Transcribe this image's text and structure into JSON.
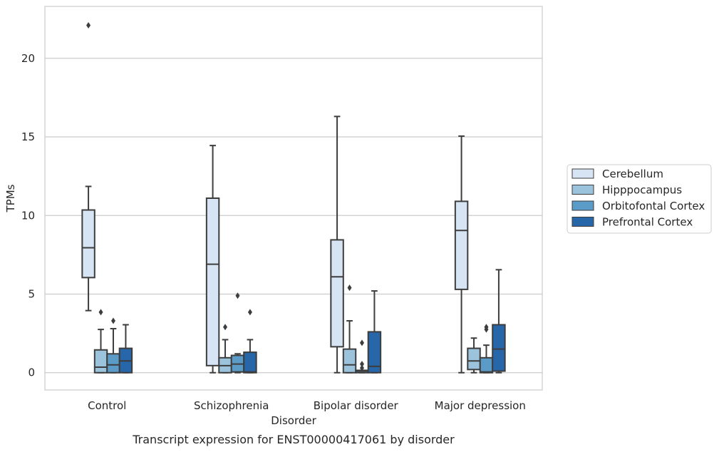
{
  "caption": "Transcript expression for ENST00000417061 by disorder",
  "chart_data": {
    "type": "box",
    "title": "",
    "xlabel": "Disorder",
    "ylabel": "TPMs",
    "ylim": [
      -1.1,
      23.3
    ],
    "yticks": [
      0,
      5,
      10,
      15,
      20
    ],
    "grid": "horizontal",
    "legend_position": "right",
    "categories": [
      "Control",
      "Schizophrenia",
      "Bipolar disorder",
      "Major depression"
    ],
    "series": [
      {
        "name": "Cerebellum",
        "color": "#d6e4f3",
        "boxes": [
          {
            "whisker_low": 3.95,
            "q1": 6.05,
            "median": 7.95,
            "q3": 10.35,
            "whisker_high": 11.85,
            "outliers": [
              22.1
            ]
          },
          {
            "whisker_low": 0.0,
            "q1": 0.45,
            "median": 6.9,
            "q3": 11.1,
            "whisker_high": 14.45,
            "outliers": []
          },
          {
            "whisker_low": 0.0,
            "q1": 1.65,
            "median": 6.1,
            "q3": 8.45,
            "whisker_high": 16.3,
            "outliers": []
          },
          {
            "whisker_low": 0.0,
            "q1": 5.3,
            "median": 9.05,
            "q3": 10.9,
            "whisker_high": 15.05,
            "outliers": []
          }
        ]
      },
      {
        "name": "Hipppocampus",
        "color": "#9cc3dc",
        "boxes": [
          {
            "whisker_low": 0.0,
            "q1": 0.0,
            "median": 0.35,
            "q3": 1.45,
            "whisker_high": 2.75,
            "outliers": [
              3.85
            ]
          },
          {
            "whisker_low": 0.0,
            "q1": 0.0,
            "median": 0.45,
            "q3": 0.95,
            "whisker_high": 2.1,
            "outliers": [
              2.9
            ]
          },
          {
            "whisker_low": 0.0,
            "q1": 0.0,
            "median": 0.5,
            "q3": 1.5,
            "whisker_high": 3.3,
            "outliers": [
              5.4
            ]
          },
          {
            "whisker_low": 0.0,
            "q1": 0.2,
            "median": 0.75,
            "q3": 1.55,
            "whisker_high": 2.2,
            "outliers": []
          }
        ]
      },
      {
        "name": "Orbitofontal Cortex",
        "color": "#5b9bc8",
        "boxes": [
          {
            "whisker_low": 0.0,
            "q1": 0.0,
            "median": 0.5,
            "q3": 1.2,
            "whisker_high": 2.8,
            "outliers": [
              3.3
            ]
          },
          {
            "whisker_low": 0.0,
            "q1": 0.05,
            "median": 0.55,
            "q3": 1.1,
            "whisker_high": 1.2,
            "outliers": [
              4.9
            ]
          },
          {
            "whisker_low": 0.0,
            "q1": 0.0,
            "median": 0.1,
            "q3": 0.15,
            "whisker_high": 0.15,
            "outliers": [
              1.9,
              0.55,
              0.3
            ]
          },
          {
            "whisker_low": 0.0,
            "q1": 0.0,
            "median": 0.05,
            "q3": 0.95,
            "whisker_high": 1.75,
            "outliers": [
              2.9,
              2.75
            ]
          }
        ]
      },
      {
        "name": "Prefrontal Cortex",
        "color": "#2666a9",
        "boxes": [
          {
            "whisker_low": 0.0,
            "q1": 0.0,
            "median": 0.75,
            "q3": 1.55,
            "whisker_high": 3.05,
            "outliers": []
          },
          {
            "whisker_low": 0.0,
            "q1": 0.0,
            "median": 0.05,
            "q3": 1.3,
            "whisker_high": 2.1,
            "outliers": [
              3.85
            ]
          },
          {
            "whisker_low": 0.0,
            "q1": 0.0,
            "median": 0.4,
            "q3": 2.6,
            "whisker_high": 5.2,
            "outliers": []
          },
          {
            "whisker_low": 0.0,
            "q1": 0.1,
            "median": 1.5,
            "q3": 3.05,
            "whisker_high": 6.55,
            "outliers": []
          }
        ]
      }
    ]
  }
}
